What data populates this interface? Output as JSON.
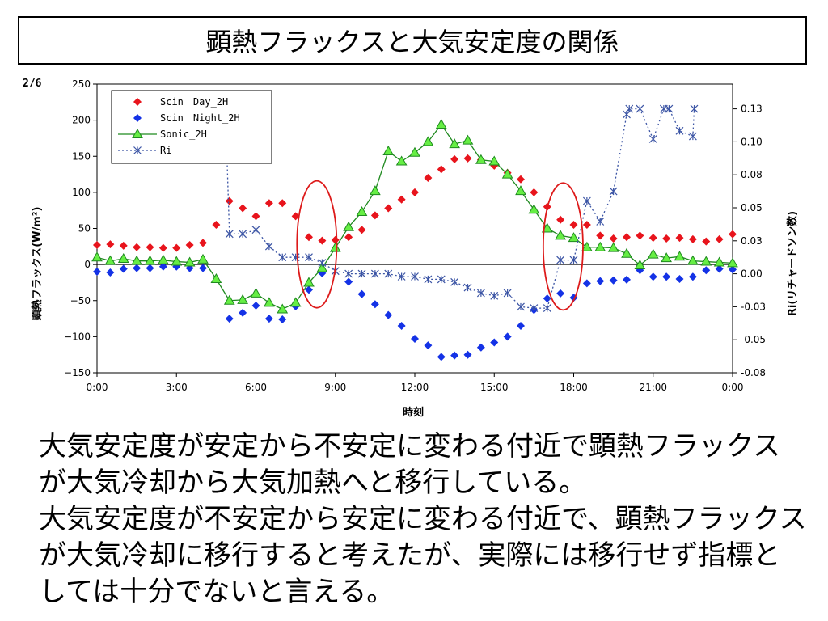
{
  "slide": {
    "title": "顕熱フラックスと大気安定度の関係",
    "page_number": "2/6",
    "caption": "大気安定度が安定から不安定に変わる付近で顕熱フラックスが大気冷却から大気加熱へと移行している。\n大気安定度が不安定から安定に変わる付近で、顕熱フラックスが大気冷却に移行すると考えたが、実際には移行せず指標としては十分でないと言える。"
  },
  "colors": {
    "scin_day": "#e8141c",
    "scin_night": "#1432e6",
    "sonic": "#1f8a1f",
    "sonic_fill": "#66ee44",
    "ri": "#3c55a5",
    "ellipse": "#dd1a1a"
  },
  "chart_data": {
    "type": "line",
    "xlabel": "時刻",
    "ylabel": "顕熱フラックス(W/m²)",
    "y2label": "Ri(リチャードソン数)",
    "xlim": [
      0,
      24
    ],
    "ylim": [
      -150,
      250
    ],
    "y2lim": [
      -0.08,
      0.13
    ],
    "x_ticks": [
      {
        "v": 0,
        "label": "0:00"
      },
      {
        "v": 3,
        "label": "3:00"
      },
      {
        "v": 6,
        "label": "6:00"
      },
      {
        "v": 9,
        "label": "9:00"
      },
      {
        "v": 12,
        "label": "12:00"
      },
      {
        "v": 15,
        "label": "15:00"
      },
      {
        "v": 18,
        "label": "18:00"
      },
      {
        "v": 21,
        "label": "21:00"
      },
      {
        "v": 24,
        "label": "0:00"
      }
    ],
    "y_ticks": [
      -150,
      -100,
      -50,
      0,
      50,
      100,
      150,
      200,
      250
    ],
    "y2_ticks": [
      {
        "v": -0.08,
        "label": "-0.08"
      },
      {
        "v": -0.056,
        "label": "-0.05"
      },
      {
        "v": -0.032,
        "label": "-0.03"
      },
      {
        "v": -0.008,
        "label": "0.00"
      },
      {
        "v": 0.016,
        "label": "0.03"
      },
      {
        "v": 0.04,
        "label": "0.05"
      },
      {
        "v": 0.064,
        "label": "0.08"
      },
      {
        "v": 0.088,
        "label": "0.10"
      },
      {
        "v": 0.112,
        "label": "0.13"
      }
    ],
    "legend_position": "top-left",
    "series": [
      {
        "name": "Scin　Day_2H",
        "key": "scin_day",
        "style": "marker",
        "marker": "diamond",
        "axis": "y",
        "x": [
          0,
          0.5,
          1,
          1.5,
          2,
          2.5,
          3,
          3.5,
          4,
          4.5,
          5,
          5.5,
          6,
          6.5,
          7,
          7.5,
          8,
          8.5,
          9,
          9.5,
          10,
          10.5,
          11,
          11.5,
          12,
          12.5,
          13,
          13.5,
          14,
          14.5,
          15,
          15.5,
          16,
          16.5,
          17,
          17.5,
          18,
          18.5,
          19,
          19.5,
          20,
          20.5,
          21,
          21.5,
          22,
          22.5,
          23,
          23.5,
          24
        ],
        "y": [
          27,
          28,
          26,
          24,
          24,
          23,
          23,
          27,
          30,
          55,
          88,
          78,
          67,
          85,
          85,
          67,
          38,
          33,
          34,
          38,
          48,
          68,
          78,
          90,
          100,
          120,
          132,
          146,
          147,
          145,
          137,
          127,
          118,
          100,
          80,
          62,
          55,
          55,
          40,
          36,
          38,
          40,
          37,
          36,
          37,
          35,
          32,
          35,
          42
        ]
      },
      {
        "name": "Scin　Night_2H",
        "key": "scin_night",
        "style": "marker",
        "marker": "diamond",
        "axis": "y",
        "x": [
          0,
          0.5,
          1,
          1.5,
          2,
          2.5,
          3,
          3.5,
          4,
          5,
          5.5,
          6,
          6.5,
          7,
          7.5,
          8,
          8.5,
          9.5,
          10,
          10.5,
          11,
          11.5,
          12,
          12.5,
          13,
          13.5,
          14,
          14.5,
          15,
          15.5,
          16,
          16.5,
          17,
          17.5,
          18,
          18.5,
          19,
          19.5,
          20,
          20.5,
          21,
          21.5,
          22,
          22.5,
          23,
          23.5,
          24
        ],
        "y": [
          -10,
          -11,
          -6,
          -5,
          -5,
          -3,
          -3,
          -5,
          -5,
          -75,
          -67,
          -57,
          -75,
          -76,
          -58,
          -35,
          -12,
          -24,
          -41,
          -55,
          -70,
          -85,
          -103,
          -112,
          -128,
          -126,
          -125,
          -115,
          -108,
          -100,
          -85,
          -63,
          -47,
          -40,
          -46,
          -26,
          -23,
          -22,
          -21,
          -8,
          -17,
          -17,
          -20,
          -17,
          -8,
          -6,
          -7
        ]
      },
      {
        "name": "Sonic_2H",
        "key": "sonic",
        "style": "line-marker",
        "marker": "triangle",
        "axis": "y",
        "x": [
          0,
          0.5,
          1,
          1.5,
          2,
          2.5,
          3,
          3.5,
          4,
          4.5,
          5,
          5.5,
          6,
          6.5,
          7,
          7.5,
          8,
          8.5,
          9,
          9.5,
          10,
          10.5,
          11,
          11.5,
          12,
          12.5,
          13,
          13.5,
          14,
          14.5,
          15,
          15.5,
          16,
          16.5,
          17,
          17.5,
          18,
          18.5,
          19,
          19.5,
          20,
          20.5,
          21,
          21.5,
          22,
          22.5,
          23,
          23.5,
          24
        ],
        "y": [
          10,
          5,
          8,
          5,
          5,
          6,
          4,
          3,
          7,
          -20,
          -50,
          -49,
          -40,
          -53,
          -62,
          -53,
          -25,
          -5,
          23,
          52,
          73,
          102,
          157,
          143,
          155,
          170,
          194,
          167,
          172,
          145,
          143,
          125,
          102,
          76,
          50,
          40,
          37,
          24,
          24,
          23,
          15,
          -1,
          14,
          9,
          11,
          5,
          4,
          3,
          2
        ]
      },
      {
        "name": "Ri",
        "key": "ri",
        "style": "dotted-line-marker",
        "marker": "asterisk",
        "axis": "y2",
        "x": [
          4.85,
          5,
          5.5,
          6,
          6.5,
          7,
          7.5,
          8,
          8.5,
          9,
          9.5,
          10,
          10.5,
          11,
          11.5,
          12,
          12.5,
          13,
          13.5,
          14,
          14.5,
          15,
          15.5,
          16,
          16.5,
          17,
          17.5,
          18,
          18.5,
          19,
          19.5,
          20,
          20.1,
          20.5,
          21,
          21.4,
          21.6,
          22,
          22.5,
          22.55
        ],
        "y": [
          0.112,
          0.021,
          0.021,
          0.024,
          0.012,
          0.004,
          0.004,
          0.004,
          0.0,
          -0.006,
          -0.008,
          -0.008,
          -0.008,
          -0.008,
          -0.01,
          -0.01,
          -0.012,
          -0.012,
          -0.014,
          -0.018,
          -0.022,
          -0.024,
          -0.022,
          -0.032,
          -0.033,
          -0.033,
          0.002,
          0.002,
          0.045,
          0.03,
          0.052,
          0.108,
          0.112,
          0.112,
          0.09,
          0.112,
          0.112,
          0.096,
          0.092,
          0.112
        ]
      }
    ],
    "annotations": [
      {
        "type": "ellipse",
        "x": 8.3,
        "y": 28,
        "rx_hours": 0.75,
        "ry_units": 88
      },
      {
        "type": "ellipse",
        "x": 17.6,
        "y": 25,
        "rx_hours": 0.75,
        "ry_units": 88
      }
    ]
  }
}
